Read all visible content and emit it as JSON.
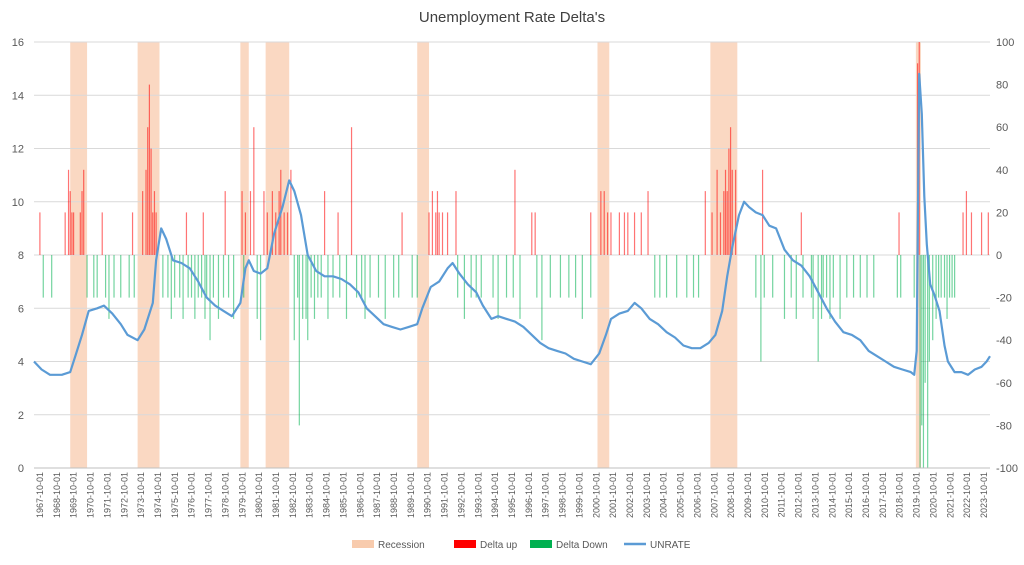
{
  "chart_data": {
    "type": "bar+line",
    "title": "Unemployment Rate Delta's",
    "left_axis": {
      "min": 0,
      "max": 16,
      "ticks": [
        0,
        2,
        4,
        6,
        8,
        10,
        12,
        14,
        16
      ]
    },
    "right_axis": {
      "min": -100,
      "max": 100,
      "ticks": [
        -100,
        -80,
        -60,
        -40,
        -20,
        0,
        20,
        40,
        60,
        80,
        100
      ]
    },
    "x_range": [
      1967.75,
      2024.5
    ],
    "x_tick_labels": [
      "1967-10-01",
      "1968-10-01",
      "1969-10-01",
      "1970-10-01",
      "1971-10-01",
      "1972-10-01",
      "1973-10-01",
      "1974-10-01",
      "1975-10-01",
      "1976-10-01",
      "1977-10-01",
      "1978-10-01",
      "1979-10-01",
      "1980-10-01",
      "1981-10-01",
      "1982-10-01",
      "1983-10-01",
      "1984-10-01",
      "1985-10-01",
      "1986-10-01",
      "1987-10-01",
      "1988-10-01",
      "1989-10-01",
      "1990-10-01",
      "1991-10-01",
      "1992-10-01",
      "1993-10-01",
      "1994-10-01",
      "1995-10-01",
      "1996-10-01",
      "1997-10-01",
      "1998-10-01",
      "1999-10-01",
      "2000-10-01",
      "2001-10-01",
      "2002-10-01",
      "2003-10-01",
      "2004-10-01",
      "2005-10-01",
      "2006-10-01",
      "2007-10-01",
      "2008-10-01",
      "2009-10-01",
      "2010-10-01",
      "2011-10-01",
      "2012-10-01",
      "2013-10-01",
      "2014-10-01",
      "2015-10-01",
      "2016-10-01",
      "2017-10-01",
      "2018-10-01",
      "2019-10-01",
      "2020-10-01",
      "2021-10-01",
      "2022-10-01",
      "2023-10-01"
    ],
    "legend": {
      "position": "bottom",
      "items": [
        {
          "label": "Recession",
          "color": "#f8cbad"
        },
        {
          "label": "Delta up",
          "color": "#ff0000"
        },
        {
          "label": "Delta Down",
          "color": "#00b050"
        },
        {
          "label": "UNRATE",
          "color": "#5b9bd5"
        }
      ]
    },
    "recessions": [
      [
        1969.9,
        1970.9
      ],
      [
        1973.9,
        1975.2
      ],
      [
        1980.0,
        1980.5
      ],
      [
        1981.5,
        1982.9
      ],
      [
        1990.5,
        1991.2
      ],
      [
        2001.2,
        2001.9
      ],
      [
        2007.9,
        2009.5
      ],
      [
        2020.1,
        2020.4
      ]
    ],
    "delta_up": [
      [
        1968.1,
        20
      ],
      [
        1969.6,
        20
      ],
      [
        1969.8,
        40
      ],
      [
        1969.9,
        30
      ],
      [
        1970.0,
        20
      ],
      [
        1970.1,
        20
      ],
      [
        1970.5,
        20
      ],
      [
        1970.6,
        30
      ],
      [
        1970.7,
        40
      ],
      [
        1971.8,
        20
      ],
      [
        1973.6,
        20
      ],
      [
        1974.2,
        30
      ],
      [
        1974.4,
        40
      ],
      [
        1974.5,
        60
      ],
      [
        1974.6,
        80
      ],
      [
        1974.7,
        50
      ],
      [
        1974.8,
        20
      ],
      [
        1974.9,
        30
      ],
      [
        1975.0,
        20
      ],
      [
        1976.8,
        20
      ],
      [
        1977.8,
        20
      ],
      [
        1979.1,
        30
      ],
      [
        1980.1,
        30
      ],
      [
        1980.3,
        20
      ],
      [
        1980.6,
        30
      ],
      [
        1980.8,
        60
      ],
      [
        1981.4,
        30
      ],
      [
        1981.6,
        20
      ],
      [
        1981.9,
        30
      ],
      [
        1982.1,
        20
      ],
      [
        1982.3,
        30
      ],
      [
        1982.4,
        40
      ],
      [
        1982.6,
        20
      ],
      [
        1982.8,
        20
      ],
      [
        1983.0,
        40
      ],
      [
        1985.0,
        30
      ],
      [
        1985.8,
        20
      ],
      [
        1986.6,
        60
      ],
      [
        1989.6,
        20
      ],
      [
        1991.2,
        20
      ],
      [
        1991.4,
        30
      ],
      [
        1991.6,
        20
      ],
      [
        1991.7,
        30
      ],
      [
        1991.8,
        20
      ],
      [
        1992.0,
        20
      ],
      [
        1992.3,
        20
      ],
      [
        1992.8,
        30
      ],
      [
        1996.3,
        40
      ],
      [
        1997.3,
        20
      ],
      [
        1997.5,
        20
      ],
      [
        2000.8,
        20
      ],
      [
        2001.4,
        30
      ],
      [
        2001.6,
        30
      ],
      [
        2001.8,
        20
      ],
      [
        2002.0,
        20
      ],
      [
        2002.5,
        20
      ],
      [
        2002.8,
        20
      ],
      [
        2003.0,
        20
      ],
      [
        2003.4,
        20
      ],
      [
        2003.8,
        20
      ],
      [
        2004.2,
        30
      ],
      [
        2007.6,
        30
      ],
      [
        2008.0,
        20
      ],
      [
        2008.3,
        40
      ],
      [
        2008.5,
        20
      ],
      [
        2008.7,
        30
      ],
      [
        2008.8,
        40
      ],
      [
        2008.9,
        30
      ],
      [
        2009.0,
        50
      ],
      [
        2009.1,
        60
      ],
      [
        2009.2,
        40
      ],
      [
        2009.4,
        40
      ],
      [
        2011.0,
        40
      ],
      [
        2013.3,
        20
      ],
      [
        2019.1,
        20
      ],
      [
        2020.2,
        90
      ],
      [
        2020.3,
        100
      ],
      [
        2022.9,
        20
      ],
      [
        2023.1,
        30
      ],
      [
        2023.4,
        20
      ],
      [
        2024.0,
        20
      ],
      [
        2024.4,
        20
      ]
    ],
    "delta_down": [
      [
        1968.3,
        -20
      ],
      [
        1968.8,
        -20
      ],
      [
        1970.9,
        -20
      ],
      [
        1971.3,
        -20
      ],
      [
        1971.5,
        -20
      ],
      [
        1972.0,
        -20
      ],
      [
        1972.2,
        -30
      ],
      [
        1972.5,
        -20
      ],
      [
        1972.9,
        -20
      ],
      [
        1973.4,
        -20
      ],
      [
        1973.7,
        -20
      ],
      [
        1975.4,
        -20
      ],
      [
        1975.7,
        -20
      ],
      [
        1975.9,
        -30
      ],
      [
        1976.1,
        -20
      ],
      [
        1976.4,
        -20
      ],
      [
        1976.6,
        -30
      ],
      [
        1976.9,
        -20
      ],
      [
        1977.1,
        -20
      ],
      [
        1977.3,
        -30
      ],
      [
        1977.5,
        -20
      ],
      [
        1977.7,
        -20
      ],
      [
        1977.9,
        -30
      ],
      [
        1978.0,
        -20
      ],
      [
        1978.2,
        -40
      ],
      [
        1978.4,
        -20
      ],
      [
        1978.7,
        -30
      ],
      [
        1979.0,
        -20
      ],
      [
        1979.3,
        -20
      ],
      [
        1979.6,
        -30
      ],
      [
        1980.2,
        -20
      ],
      [
        1981.0,
        -30
      ],
      [
        1981.2,
        -40
      ],
      [
        1983.2,
        -40
      ],
      [
        1983.4,
        -20
      ],
      [
        1983.5,
        -80
      ],
      [
        1983.7,
        -30
      ],
      [
        1983.9,
        -30
      ],
      [
        1984.0,
        -40
      ],
      [
        1984.2,
        -20
      ],
      [
        1984.4,
        -30
      ],
      [
        1984.6,
        -20
      ],
      [
        1984.8,
        -20
      ],
      [
        1985.2,
        -30
      ],
      [
        1985.5,
        -20
      ],
      [
        1985.9,
        -20
      ],
      [
        1986.3,
        -30
      ],
      [
        1986.9,
        -20
      ],
      [
        1987.2,
        -20
      ],
      [
        1987.4,
        -30
      ],
      [
        1987.7,
        -20
      ],
      [
        1988.2,
        -20
      ],
      [
        1988.6,
        -30
      ],
      [
        1989.1,
        -20
      ],
      [
        1989.4,
        -20
      ],
      [
        1990.2,
        -20
      ],
      [
        1990.5,
        -20
      ],
      [
        1992.9,
        -20
      ],
      [
        1993.3,
        -30
      ],
      [
        1993.7,
        -20
      ],
      [
        1994.0,
        -20
      ],
      [
        1994.3,
        -20
      ],
      [
        1995.0,
        -20
      ],
      [
        1995.3,
        -30
      ],
      [
        1995.8,
        -20
      ],
      [
        1996.2,
        -20
      ],
      [
        1996.6,
        -30
      ],
      [
        1997.6,
        -20
      ],
      [
        1997.9,
        -40
      ],
      [
        1998.4,
        -20
      ],
      [
        1999.0,
        -20
      ],
      [
        1999.5,
        -20
      ],
      [
        1999.9,
        -20
      ],
      [
        2000.3,
        -30
      ],
      [
        2000.8,
        -20
      ],
      [
        2004.6,
        -20
      ],
      [
        2004.9,
        -20
      ],
      [
        2005.3,
        -20
      ],
      [
        2005.9,
        -20
      ],
      [
        2006.5,
        -20
      ],
      [
        2006.9,
        -20
      ],
      [
        2007.2,
        -20
      ],
      [
        2010.6,
        -20
      ],
      [
        2010.9,
        -50
      ],
      [
        2011.1,
        -20
      ],
      [
        2011.6,
        -20
      ],
      [
        2012.3,
        -30
      ],
      [
        2012.7,
        -20
      ],
      [
        2013.0,
        -30
      ],
      [
        2013.4,
        -20
      ],
      [
        2013.9,
        -20
      ],
      [
        2014.0,
        -30
      ],
      [
        2014.3,
        -50
      ],
      [
        2014.5,
        -30
      ],
      [
        2014.6,
        -20
      ],
      [
        2014.8,
        -20
      ],
      [
        2015.0,
        -30
      ],
      [
        2015.2,
        -20
      ],
      [
        2015.6,
        -30
      ],
      [
        2016.0,
        -20
      ],
      [
        2016.4,
        -20
      ],
      [
        2016.8,
        -20
      ],
      [
        2017.2,
        -20
      ],
      [
        2017.6,
        -20
      ],
      [
        2019.0,
        -20
      ],
      [
        2019.2,
        -20
      ],
      [
        2020.0,
        -20
      ],
      [
        2020.35,
        -100
      ],
      [
        2020.45,
        -80
      ],
      [
        2020.55,
        -100
      ],
      [
        2020.65,
        -60
      ],
      [
        2020.8,
        -100
      ],
      [
        2020.9,
        -50
      ],
      [
        2021.1,
        -40
      ],
      [
        2021.3,
        -30
      ],
      [
        2021.45,
        -20
      ],
      [
        2021.6,
        -20
      ],
      [
        2021.8,
        -20
      ],
      [
        2021.95,
        -30
      ],
      [
        2022.1,
        -20
      ],
      [
        2022.25,
        -20
      ],
      [
        2022.4,
        -20
      ]
    ],
    "unrate_series": {
      "name": "UNRATE",
      "points": [
        [
          1967.75,
          4.0
        ],
        [
          1968.2,
          3.7
        ],
        [
          1968.7,
          3.5
        ],
        [
          1969.4,
          3.5
        ],
        [
          1969.9,
          3.6
        ],
        [
          1970.2,
          4.2
        ],
        [
          1970.6,
          5.0
        ],
        [
          1971.0,
          5.9
        ],
        [
          1971.5,
          6.0
        ],
        [
          1971.9,
          6.1
        ],
        [
          1972.4,
          5.8
        ],
        [
          1972.9,
          5.4
        ],
        [
          1973.3,
          5.0
        ],
        [
          1973.9,
          4.8
        ],
        [
          1974.3,
          5.2
        ],
        [
          1974.8,
          6.2
        ],
        [
          1975.0,
          7.8
        ],
        [
          1975.3,
          9.0
        ],
        [
          1975.6,
          8.6
        ],
        [
          1976.0,
          7.8
        ],
        [
          1976.5,
          7.7
        ],
        [
          1977.0,
          7.5
        ],
        [
          1977.5,
          7.0
        ],
        [
          1978.0,
          6.4
        ],
        [
          1978.5,
          6.1
        ],
        [
          1979.0,
          5.9
        ],
        [
          1979.5,
          5.7
        ],
        [
          1980.0,
          6.2
        ],
        [
          1980.3,
          7.5
        ],
        [
          1980.5,
          7.8
        ],
        [
          1980.8,
          7.4
        ],
        [
          1981.2,
          7.3
        ],
        [
          1981.6,
          7.5
        ],
        [
          1982.0,
          8.8
        ],
        [
          1982.5,
          9.8
        ],
        [
          1982.9,
          10.8
        ],
        [
          1983.2,
          10.4
        ],
        [
          1983.6,
          9.5
        ],
        [
          1984.0,
          8.0
        ],
        [
          1984.5,
          7.4
        ],
        [
          1985.0,
          7.2
        ],
        [
          1985.5,
          7.2
        ],
        [
          1986.0,
          7.1
        ],
        [
          1986.5,
          6.9
        ],
        [
          1987.0,
          6.6
        ],
        [
          1987.5,
          6.0
        ],
        [
          1988.0,
          5.7
        ],
        [
          1988.5,
          5.4
        ],
        [
          1989.0,
          5.3
        ],
        [
          1989.5,
          5.2
        ],
        [
          1990.0,
          5.3
        ],
        [
          1990.5,
          5.4
        ],
        [
          1990.8,
          6.0
        ],
        [
          1991.3,
          6.8
        ],
        [
          1991.8,
          7.0
        ],
        [
          1992.3,
          7.5
        ],
        [
          1992.6,
          7.7
        ],
        [
          1993.0,
          7.3
        ],
        [
          1993.5,
          6.9
        ],
        [
          1994.0,
          6.6
        ],
        [
          1994.4,
          6.1
        ],
        [
          1994.9,
          5.6
        ],
        [
          1995.3,
          5.7
        ],
        [
          1995.8,
          5.6
        ],
        [
          1996.3,
          5.5
        ],
        [
          1996.8,
          5.3
        ],
        [
          1997.3,
          5.0
        ],
        [
          1997.8,
          4.7
        ],
        [
          1998.3,
          4.5
        ],
        [
          1998.8,
          4.4
        ],
        [
          1999.3,
          4.3
        ],
        [
          1999.8,
          4.1
        ],
        [
          2000.3,
          4.0
        ],
        [
          2000.8,
          3.9
        ],
        [
          2001.3,
          4.3
        ],
        [
          2001.7,
          5.0
        ],
        [
          2002.0,
          5.6
        ],
        [
          2002.5,
          5.8
        ],
        [
          2003.0,
          5.9
        ],
        [
          2003.4,
          6.2
        ],
        [
          2003.8,
          6.0
        ],
        [
          2004.3,
          5.6
        ],
        [
          2004.8,
          5.4
        ],
        [
          2005.3,
          5.1
        ],
        [
          2005.8,
          4.9
        ],
        [
          2006.3,
          4.6
        ],
        [
          2006.8,
          4.5
        ],
        [
          2007.3,
          4.5
        ],
        [
          2007.8,
          4.7
        ],
        [
          2008.2,
          5.0
        ],
        [
          2008.6,
          5.9
        ],
        [
          2008.9,
          7.2
        ],
        [
          2009.2,
          8.3
        ],
        [
          2009.6,
          9.5
        ],
        [
          2009.9,
          10.0
        ],
        [
          2010.2,
          9.8
        ],
        [
          2010.6,
          9.6
        ],
        [
          2011.0,
          9.5
        ],
        [
          2011.4,
          9.1
        ],
        [
          2011.8,
          9.0
        ],
        [
          2012.3,
          8.2
        ],
        [
          2012.8,
          7.8
        ],
        [
          2013.3,
          7.6
        ],
        [
          2013.8,
          7.2
        ],
        [
          2014.3,
          6.6
        ],
        [
          2014.8,
          6.0
        ],
        [
          2015.3,
          5.5
        ],
        [
          2015.8,
          5.1
        ],
        [
          2016.3,
          5.0
        ],
        [
          2016.8,
          4.8
        ],
        [
          2017.3,
          4.4
        ],
        [
          2017.8,
          4.2
        ],
        [
          2018.3,
          4.0
        ],
        [
          2018.8,
          3.8
        ],
        [
          2019.3,
          3.7
        ],
        [
          2019.8,
          3.6
        ],
        [
          2020.0,
          3.5
        ],
        [
          2020.15,
          4.4
        ],
        [
          2020.3,
          14.8
        ],
        [
          2020.45,
          13.3
        ],
        [
          2020.6,
          10.2
        ],
        [
          2020.75,
          8.4
        ],
        [
          2020.95,
          6.9
        ],
        [
          2021.2,
          6.5
        ],
        [
          2021.5,
          5.9
        ],
        [
          2021.8,
          4.6
        ],
        [
          2022.0,
          4.0
        ],
        [
          2022.4,
          3.6
        ],
        [
          2022.8,
          3.6
        ],
        [
          2023.2,
          3.5
        ],
        [
          2023.6,
          3.7
        ],
        [
          2024.0,
          3.8
        ],
        [
          2024.3,
          4.0
        ],
        [
          2024.5,
          4.2
        ]
      ]
    }
  }
}
